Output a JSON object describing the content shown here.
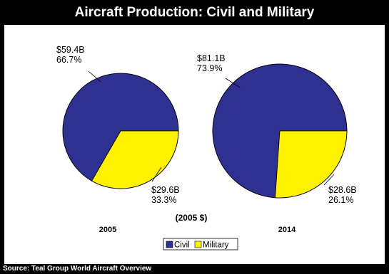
{
  "title": "Aircraft Production: Civil and Military",
  "source": "Source: Teal Group World Aircraft Overview",
  "units_label": "(2005 $)",
  "colors": {
    "civil": "#2e3192",
    "military": "#fff200",
    "background": "#ffffff",
    "frame": "#000000"
  },
  "chart_data": [
    {
      "type": "pie",
      "year": "2005",
      "slices": [
        {
          "name": "Civil",
          "value": 66.7,
          "label_amount": "$59.4B",
          "label_percent": "66.7%"
        },
        {
          "name": "Military",
          "value": 33.3,
          "label_amount": "$29.6B",
          "label_percent": "33.3%"
        }
      ]
    },
    {
      "type": "pie",
      "year": "2014",
      "slices": [
        {
          "name": "Civil",
          "value": 73.9,
          "label_amount": "$81.1B",
          "label_percent": "73.9%"
        },
        {
          "name": "Military",
          "value": 26.1,
          "label_amount": "$28.6B",
          "label_percent": "26.1%"
        }
      ]
    }
  ],
  "legend": {
    "items": [
      "Civil",
      "Military"
    ],
    "placement": "bottom-center"
  }
}
